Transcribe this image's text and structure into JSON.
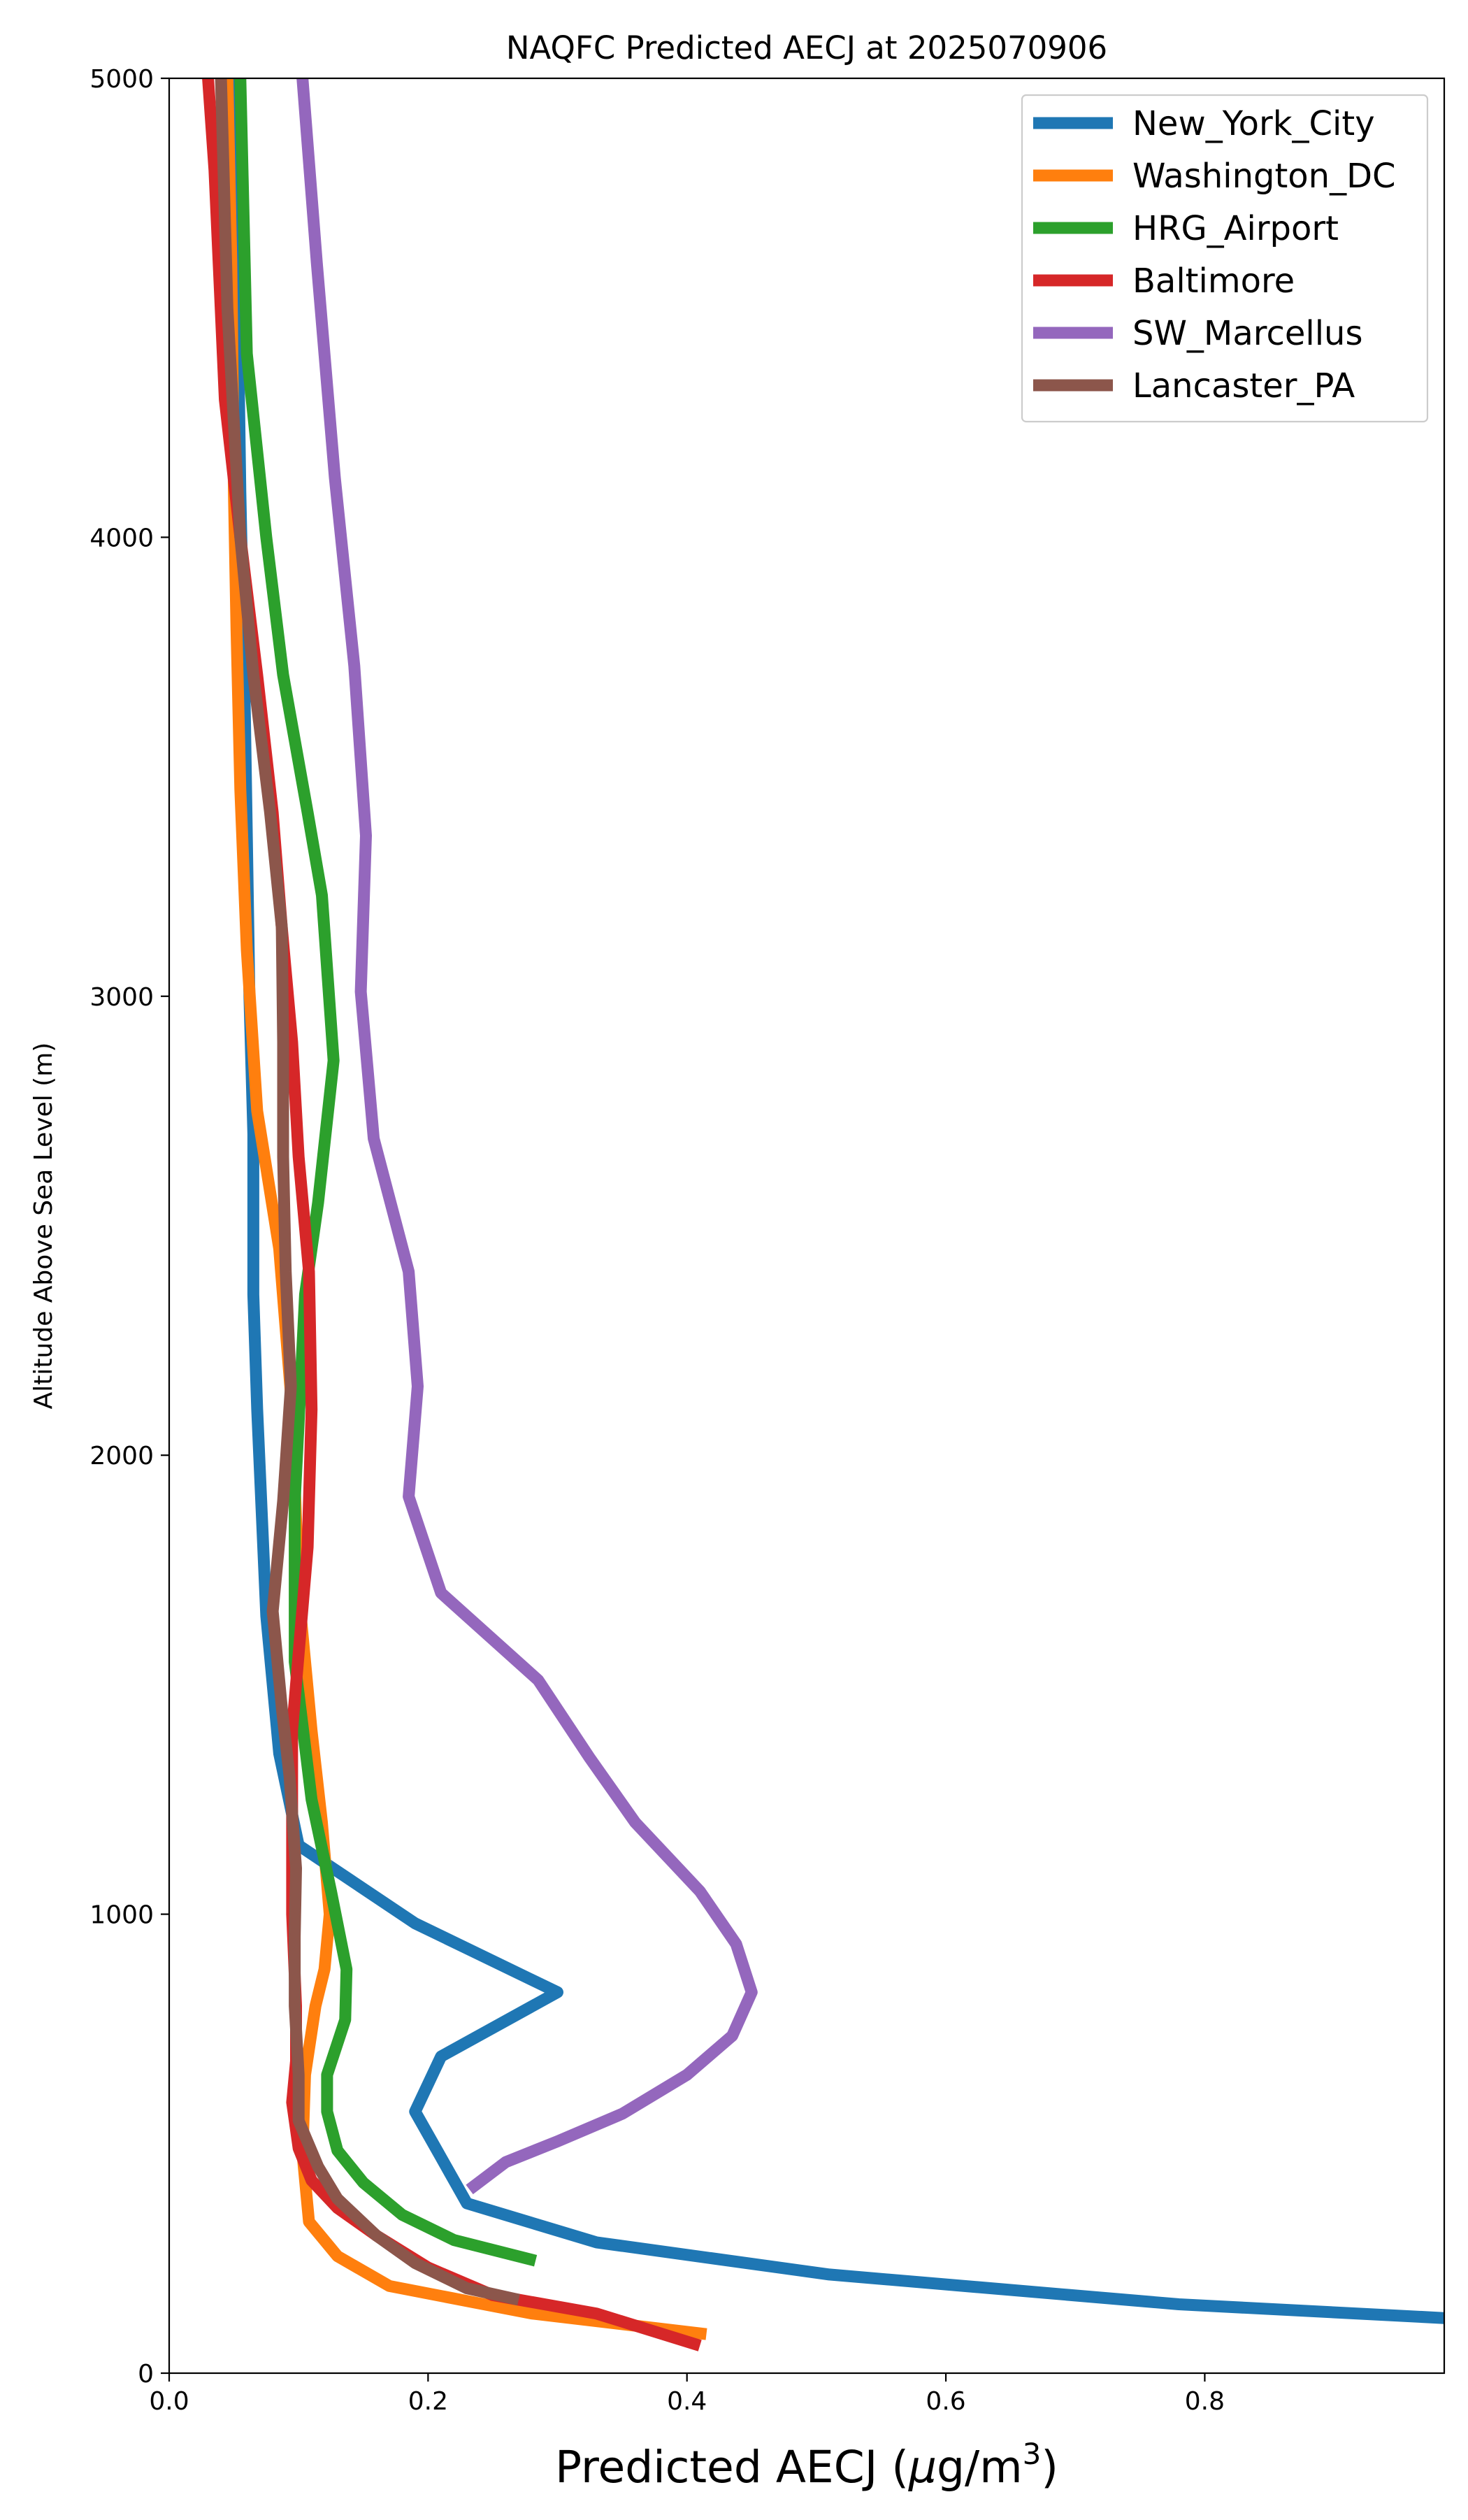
{
  "chart_data": {
    "type": "line",
    "title": "NAQFC Predicted AECJ at 2025070906",
    "xlabel_main": "Predicted AECJ (",
    "xlabel_mu": "μ",
    "xlabel_unit": "g/m",
    "xlabel_sup": "3",
    "xlabel_close": ")",
    "ylabel": "Altitude Above Sea Level (m)",
    "xlim": [
      0,
      0.985
    ],
    "ylim": [
      0,
      5000
    ],
    "xticks": [
      0.0,
      0.2,
      0.4,
      0.6,
      0.8
    ],
    "xtick_labels": [
      "0.0",
      "0.2",
      "0.4",
      "0.6",
      "0.8"
    ],
    "yticks": [
      0,
      1000,
      2000,
      3000,
      4000,
      5000
    ],
    "ytick_labels": [
      "0",
      "1000",
      "2000",
      "3000",
      "4000",
      "5000"
    ],
    "grid": false,
    "legend_position": "top-right",
    "series": [
      {
        "name": "New_York_City",
        "color": "#1f77b4",
        "points": [
          [
            0.985,
            120
          ],
          [
            0.78,
            150
          ],
          [
            0.51,
            215
          ],
          [
            0.33,
            285
          ],
          [
            0.23,
            370
          ],
          [
            0.21,
            470
          ],
          [
            0.19,
            570
          ],
          [
            0.21,
            690
          ],
          [
            0.3,
            830
          ],
          [
            0.19,
            980
          ],
          [
            0.1,
            1150
          ],
          [
            0.085,
            1350
          ],
          [
            0.075,
            1650
          ],
          [
            0.068,
            2100
          ],
          [
            0.065,
            2350
          ],
          [
            0.065,
            2700
          ],
          [
            0.062,
            3000
          ],
          [
            0.06,
            3350
          ],
          [
            0.058,
            3700
          ],
          [
            0.055,
            4100
          ],
          [
            0.053,
            4500
          ],
          [
            0.052,
            5000
          ]
        ]
      },
      {
        "name": "Washington_DC",
        "color": "#ff7f0e",
        "points": [
          [
            0.415,
            85
          ],
          [
            0.28,
            130
          ],
          [
            0.17,
            190
          ],
          [
            0.13,
            255
          ],
          [
            0.108,
            330
          ],
          [
            0.103,
            480
          ],
          [
            0.105,
            650
          ],
          [
            0.113,
            800
          ],
          [
            0.12,
            880
          ],
          [
            0.124,
            1000
          ],
          [
            0.118,
            1200
          ],
          [
            0.11,
            1400
          ],
          [
            0.1,
            1700
          ],
          [
            0.095,
            2100
          ],
          [
            0.085,
            2450
          ],
          [
            0.068,
            2750
          ],
          [
            0.06,
            3100
          ],
          [
            0.055,
            3450
          ],
          [
            0.052,
            3800
          ],
          [
            0.05,
            4100
          ],
          [
            0.048,
            4600
          ],
          [
            0.045,
            5000
          ]
        ]
      },
      {
        "name": "HRG_Airport",
        "color": "#2ca02c",
        "points": [
          [
            0.283,
            245
          ],
          [
            0.22,
            290
          ],
          [
            0.18,
            345
          ],
          [
            0.15,
            415
          ],
          [
            0.13,
            485
          ],
          [
            0.122,
            570
          ],
          [
            0.122,
            650
          ],
          [
            0.136,
            770
          ],
          [
            0.137,
            880
          ],
          [
            0.125,
            1050
          ],
          [
            0.11,
            1250
          ],
          [
            0.097,
            1550
          ],
          [
            0.097,
            1900
          ],
          [
            0.105,
            2350
          ],
          [
            0.115,
            2550
          ],
          [
            0.127,
            2860
          ],
          [
            0.118,
            3220
          ],
          [
            0.107,
            3400
          ],
          [
            0.088,
            3700
          ],
          [
            0.075,
            4000
          ],
          [
            0.06,
            4400
          ],
          [
            0.055,
            5000
          ]
        ]
      },
      {
        "name": "Baltimore",
        "color": "#d62728",
        "points": [
          [
            0.41,
            60
          ],
          [
            0.33,
            130
          ],
          [
            0.25,
            170
          ],
          [
            0.2,
            230
          ],
          [
            0.16,
            300
          ],
          [
            0.13,
            360
          ],
          [
            0.11,
            420
          ],
          [
            0.1,
            490
          ],
          [
            0.095,
            590
          ],
          [
            0.098,
            680
          ],
          [
            0.098,
            800
          ],
          [
            0.095,
            1000
          ],
          [
            0.095,
            1200
          ],
          [
            0.095,
            1400
          ],
          [
            0.101,
            1600
          ],
          [
            0.107,
            1800
          ],
          [
            0.11,
            2100
          ],
          [
            0.108,
            2400
          ],
          [
            0.1,
            2650
          ],
          [
            0.095,
            2900
          ],
          [
            0.087,
            3150
          ],
          [
            0.08,
            3400
          ],
          [
            0.068,
            3700
          ],
          [
            0.055,
            4000
          ],
          [
            0.043,
            4300
          ],
          [
            0.035,
            4800
          ],
          [
            0.03,
            5000
          ]
        ]
      },
      {
        "name": "SW_Marcellus",
        "color": "#9467bd",
        "points": [
          [
            0.232,
            400
          ],
          [
            0.26,
            460
          ],
          [
            0.3,
            505
          ],
          [
            0.35,
            565
          ],
          [
            0.4,
            650
          ],
          [
            0.435,
            735
          ],
          [
            0.45,
            830
          ],
          [
            0.438,
            935
          ],
          [
            0.41,
            1050
          ],
          [
            0.36,
            1200
          ],
          [
            0.325,
            1340
          ],
          [
            0.285,
            1510
          ],
          [
            0.21,
            1700
          ],
          [
            0.185,
            1910
          ],
          [
            0.192,
            2150
          ],
          [
            0.185,
            2400
          ],
          [
            0.158,
            2690
          ],
          [
            0.148,
            3010
          ],
          [
            0.152,
            3350
          ],
          [
            0.143,
            3720
          ],
          [
            0.128,
            4130
          ],
          [
            0.114,
            4600
          ],
          [
            0.103,
            5000
          ]
        ]
      },
      {
        "name": "Lancaster_PA",
        "color": "#8c564b",
        "points": [
          [
            0.27,
            160
          ],
          [
            0.23,
            185
          ],
          [
            0.19,
            240
          ],
          [
            0.16,
            300
          ],
          [
            0.13,
            380
          ],
          [
            0.115,
            450
          ],
          [
            0.1,
            550
          ],
          [
            0.1,
            650
          ],
          [
            0.097,
            800
          ],
          [
            0.097,
            950
          ],
          [
            0.098,
            1100
          ],
          [
            0.093,
            1300
          ],
          [
            0.087,
            1450
          ],
          [
            0.08,
            1660
          ],
          [
            0.088,
            1900
          ],
          [
            0.094,
            2150
          ],
          [
            0.09,
            2400
          ],
          [
            0.088,
            2650
          ],
          [
            0.088,
            2900
          ],
          [
            0.087,
            3150
          ],
          [
            0.078,
            3400
          ],
          [
            0.065,
            3700
          ],
          [
            0.055,
            4000
          ],
          [
            0.045,
            4500
          ],
          [
            0.04,
            5000
          ]
        ]
      }
    ]
  }
}
